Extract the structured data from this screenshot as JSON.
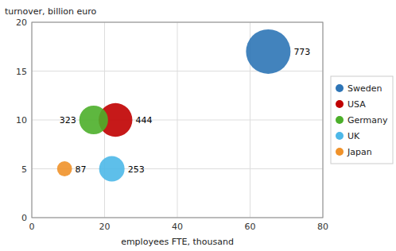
{
  "chart_data": {
    "type": "scatter",
    "xlabel": "employees FTE, thousand",
    "ylabel": "turnover, billion euro",
    "series": [
      {
        "name": "Sweden",
        "color": "#2e75b6",
        "x": [
          65
        ],
        "values": [
          17
        ],
        "sizes": [
          773
        ]
      },
      {
        "name": "USA",
        "color": "#c00000",
        "x": [
          23
        ],
        "values": [
          10
        ],
        "sizes": [
          444
        ]
      },
      {
        "name": "Germany",
        "color": "#4caf2a",
        "x": [
          17
        ],
        "values": [
          10
        ],
        "sizes": [
          323
        ]
      },
      {
        "name": "UK",
        "color": "#4db8e8",
        "x": [
          22
        ],
        "values": [
          5
        ],
        "sizes": [
          253
        ]
      },
      {
        "name": "Japan",
        "color": "#f0922a",
        "x": [
          9
        ],
        "values": [
          5
        ],
        "sizes": [
          87
        ]
      }
    ],
    "xlim": [
      0,
      80
    ],
    "ylim": [
      0,
      20
    ],
    "xticks": [
      0,
      20,
      40,
      60,
      80
    ],
    "yticks": [
      0,
      5,
      10,
      15,
      20
    ],
    "grid": true,
    "legend": "right",
    "data_labels": true
  }
}
